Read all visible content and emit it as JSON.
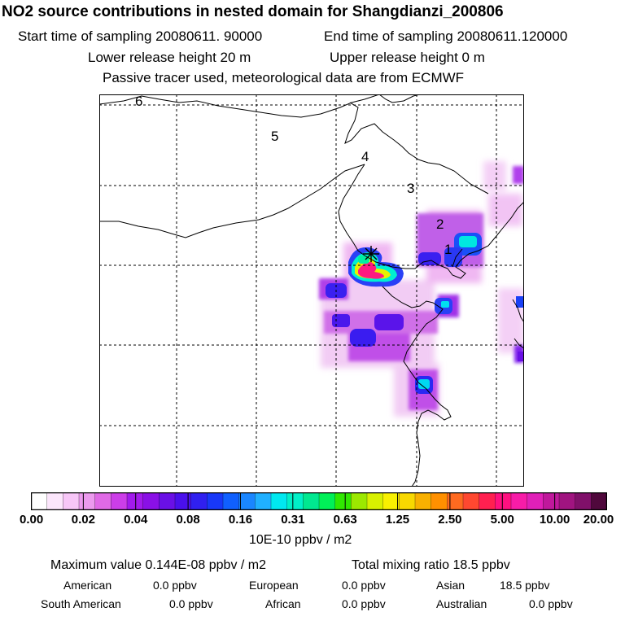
{
  "header": {
    "title": "NO2 source contributions in nested domain for Shangdianzi_200806",
    "start_label": "Start time of sampling 20080611. 90000",
    "end_label": "End time of sampling 20080611.120000",
    "lower_label": "Lower release height   20 m",
    "upper_label": "Upper release height    0 m",
    "note": "Passive tracer used, meteorological data are from ECMWF"
  },
  "map": {
    "region_labels": [
      "6",
      "5",
      "4",
      "3",
      "2",
      "1"
    ],
    "receptor_marker": "asterisk-marker"
  },
  "colorbar": {
    "units": "10E-10 ppbv / m2",
    "ticks": [
      "0.00",
      "0.02",
      "0.04",
      "0.08",
      "0.16",
      "0.31",
      "0.63",
      "1.25",
      "2.50",
      "5.00",
      "10.00",
      "20.00"
    ],
    "colors": [
      "#ffffff",
      "#fce6fc",
      "#f7c6f7",
      "#ec9aee",
      "#e06ae6",
      "#cc3ee8",
      "#a21aec",
      "#8a10e6",
      "#6a10e6",
      "#4a10ec",
      "#3020f0",
      "#1838f8",
      "#1060ff",
      "#1a86ff",
      "#20b0ff",
      "#00e8f0",
      "#00f0c8",
      "#00e890",
      "#00f058",
      "#30e800",
      "#9ce800",
      "#d8f000",
      "#f8f000",
      "#f8d800",
      "#f8b000",
      "#ff9000",
      "#ff6a20",
      "#ff4830",
      "#ff2050",
      "#ff1080",
      "#f81ca8",
      "#e020b8",
      "#c0189c",
      "#a01480",
      "#80106a",
      "#50083c"
    ]
  },
  "stats": {
    "max_label": "Maximum value  0.144E-08 ppbv / m2",
    "total_label": "Total mixing ratio      18.5 ppbv",
    "sources": [
      {
        "name": "American",
        "value": "0.0 ppbv"
      },
      {
        "name": "European",
        "value": "0.0 ppbv"
      },
      {
        "name": "Asian",
        "value": "18.5 ppbv"
      },
      {
        "name": "South American",
        "value": "0.0 ppbv"
      },
      {
        "name": "African",
        "value": "0.0 ppbv"
      },
      {
        "name": "Australian",
        "value": "0.0 ppbv"
      }
    ]
  }
}
